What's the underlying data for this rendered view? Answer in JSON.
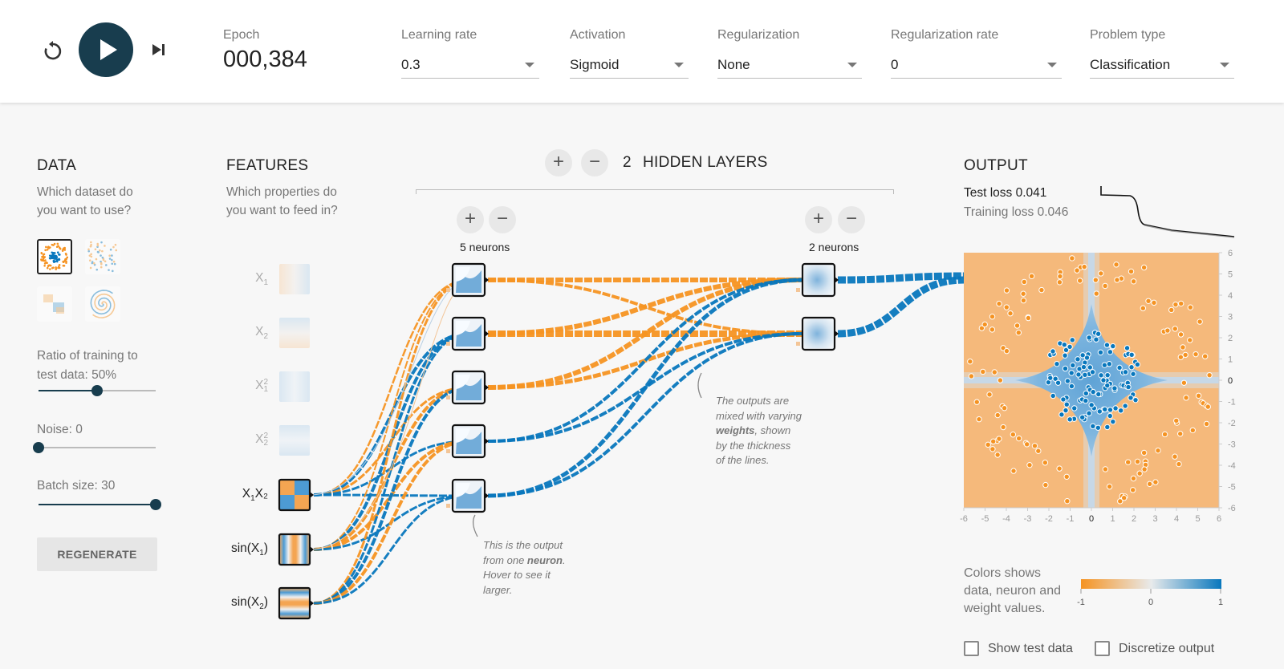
{
  "controls": {
    "reset_icon": "reset-icon",
    "play_icon": "play-icon",
    "step_icon": "step-forward-icon"
  },
  "epoch": {
    "label": "Epoch",
    "value": "000,384"
  },
  "learning_rate": {
    "label": "Learning rate",
    "value": "0.3"
  },
  "activation": {
    "label": "Activation",
    "value": "Sigmoid"
  },
  "regularization": {
    "label": "Regularization",
    "value": "None"
  },
  "regularization_rate": {
    "label": "Regularization rate",
    "value": "0"
  },
  "problem_type": {
    "label": "Problem type",
    "value": "Classification"
  },
  "data": {
    "title": "DATA",
    "question_line1": "Which dataset do",
    "question_line2": "you want to use?",
    "datasets": [
      "circle",
      "gaussian",
      "xor",
      "spiral"
    ],
    "selected_dataset": "circle",
    "ratio_label_line1": "Ratio of training to",
    "ratio_label_line2": "test data:  50%",
    "ratio_value": 50,
    "noise_label": "Noise:  0",
    "noise_value": 0,
    "batch_label": "Batch size:  30",
    "batch_value": 30,
    "regenerate": "REGENERATE"
  },
  "features": {
    "title": "FEATURES",
    "question_line1": "Which properties do",
    "question_line2": "you want to feed in?",
    "items": [
      {
        "base": "X",
        "sub": "1",
        "sup": "",
        "tail": "",
        "active": false
      },
      {
        "base": "X",
        "sub": "2",
        "sup": "",
        "tail": "",
        "active": false
      },
      {
        "base": "X",
        "sub": "1",
        "sup": "2",
        "tail": "",
        "active": false
      },
      {
        "base": "X",
        "sub": "2",
        "sup": "2",
        "tail": "",
        "active": false
      },
      {
        "base": "X",
        "sub": "1",
        "sup": "",
        "tail": "X₂",
        "active": true
      },
      {
        "base": "sin(X",
        "sub": "1",
        "sup": "",
        "tail": ")",
        "active": true
      },
      {
        "base": "sin(X",
        "sub": "2",
        "sup": "",
        "tail": ")",
        "active": true
      }
    ]
  },
  "hidden_layers": {
    "count": "2",
    "label": "HIDDEN LAYERS",
    "add_symbol": "+",
    "remove_symbol": "−",
    "layers": [
      {
        "neurons_label": "5 neurons"
      },
      {
        "neurons_label": "2 neurons"
      }
    ]
  },
  "annotations": {
    "weights_line1": "The outputs are",
    "weights_line2": "mixed with varying",
    "weights_bold": "weights",
    "weights_line3_rest": ", shown",
    "weights_line4": "by the thickness",
    "weights_line5": "of the lines.",
    "neuron_line1": "This is the output",
    "neuron_line2_pre": "from one ",
    "neuron_bold": "neuron",
    "neuron_line2_post": ".",
    "neuron_line3": "Hover to see it",
    "neuron_line4": "larger."
  },
  "output": {
    "title": "OUTPUT",
    "test_loss": "Test loss 0.041",
    "training_loss": "Training loss 0.046",
    "y_ticks": [
      "6",
      "5",
      "4",
      "3",
      "2",
      "1",
      "0",
      "-1",
      "-2",
      "-3",
      "-4",
      "-5",
      "-6"
    ],
    "x_ticks": [
      "-6",
      "-5",
      "-4",
      "-3",
      "-2",
      "-1",
      "0",
      "1",
      "2",
      "3",
      "4",
      "5",
      "6"
    ],
    "legend_line1": "Colors shows",
    "legend_line2": "data, neuron and",
    "legend_line3": "weight values.",
    "scale_min": "-1",
    "scale_mid": "0",
    "scale_max": "1",
    "show_test_data": "Show test data",
    "discretize_output": "Discretize output"
  },
  "colors": {
    "orange": "#f59322",
    "blue": "#0877bd",
    "dark": "#183d4e"
  }
}
